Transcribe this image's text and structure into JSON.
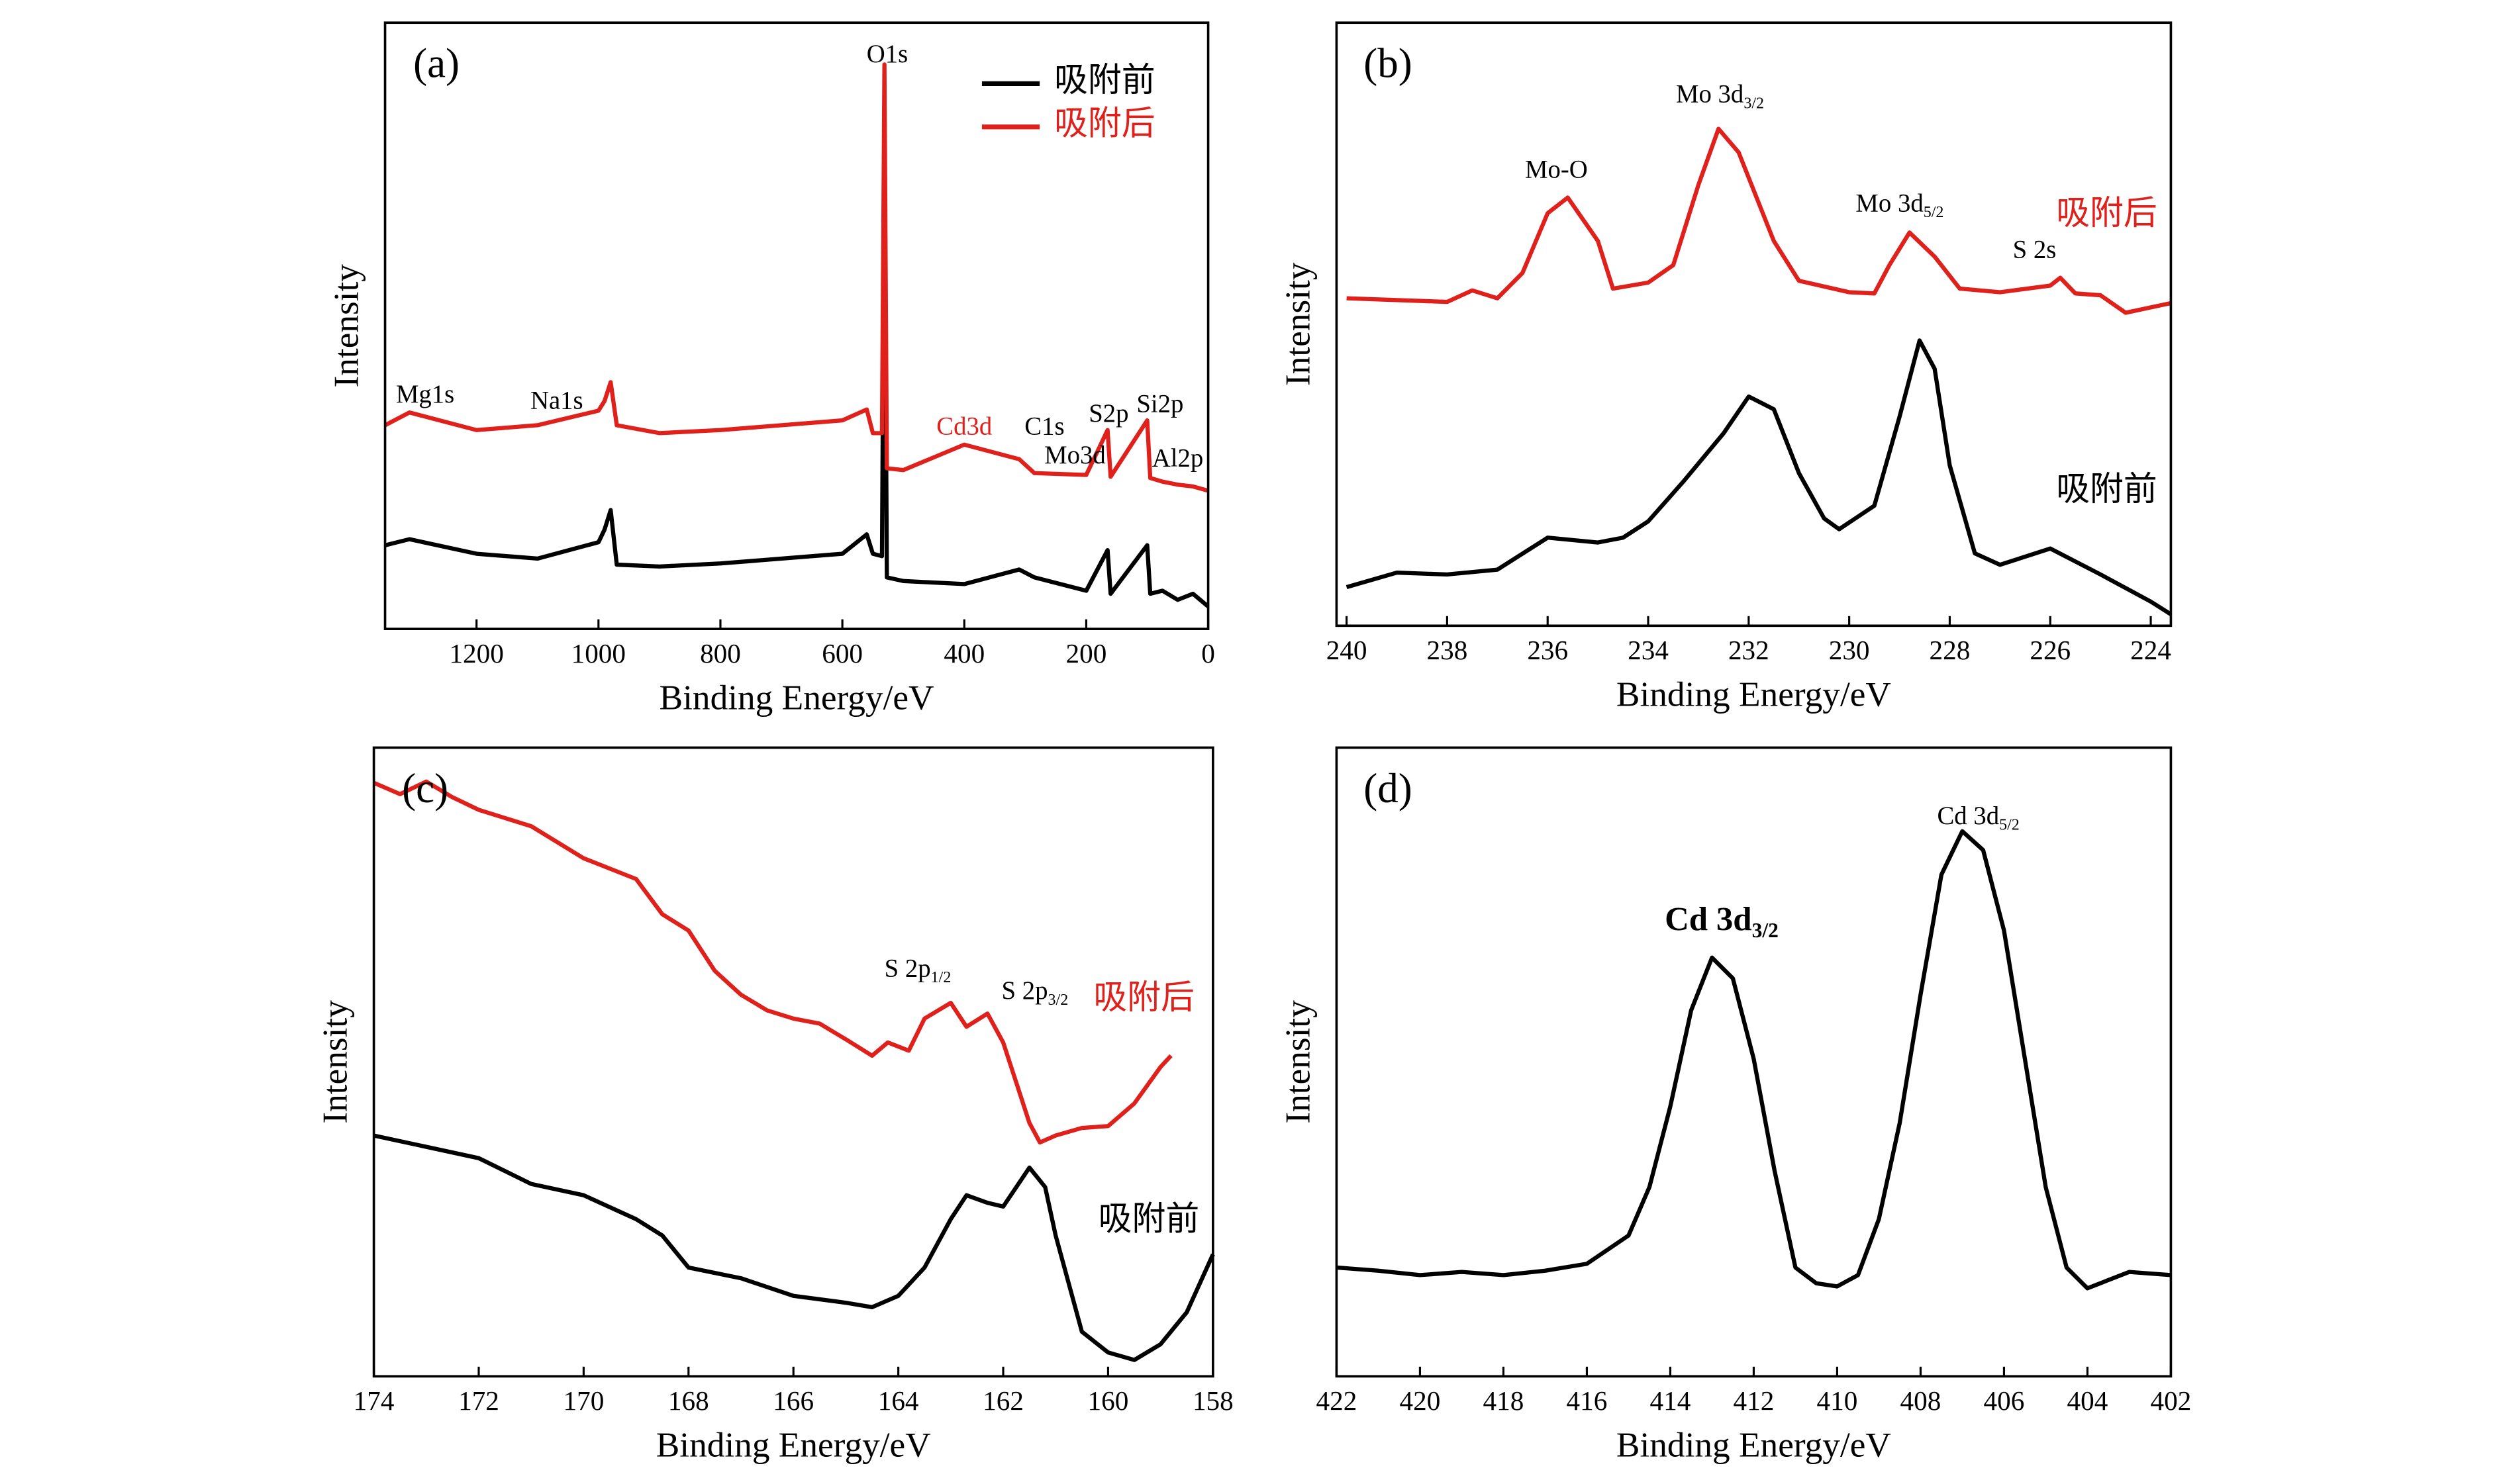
{
  "chart_data": [
    {
      "type": "line",
      "label": "(a)",
      "xlabel": "Binding Energy/eV",
      "ylabel": "Intensity",
      "xlim": [
        1350,
        0
      ],
      "ylim": [
        0,
        100
      ],
      "xticks": [
        1200,
        1000,
        800,
        600,
        400,
        200,
        0
      ],
      "legend": "upper right",
      "series": [
        {
          "name": "吸附前",
          "color": "#000000",
          "x": [
            1350,
            1310,
            1200,
            1100,
            1000,
            990,
            980,
            970,
            900,
            800,
            600,
            560,
            550,
            535,
            531,
            527,
            500,
            400,
            310,
            285,
            200,
            165,
            160,
            100,
            95,
            75,
            50,
            25,
            0
          ],
          "values": [
            13.8,
            14.8,
            12.4,
            11.6,
            14.3,
            16.4,
            19.6,
            10.6,
            10.3,
            10.8,
            12.4,
            15.6,
            12.4,
            12,
            79.9,
            8.5,
            7.9,
            7.4,
            9.8,
            8.5,
            6.3,
            13,
            5.8,
            13.8,
            5.8,
            6.3,
            4.8,
            5.8,
            3.7
          ]
        },
        {
          "name": "吸附后",
          "color": "#e0201b",
          "x": [
            1350,
            1310,
            1200,
            1100,
            1000,
            990,
            980,
            970,
            900,
            800,
            600,
            560,
            550,
            535,
            531,
            527,
            500,
            400,
            310,
            285,
            200,
            165,
            160,
            100,
            95,
            75,
            50,
            25,
            0
          ],
          "values": [
            33.6,
            35.7,
            32.8,
            33.6,
            36,
            37.6,
            40.7,
            33.6,
            32.3,
            32.8,
            34.4,
            36.2,
            32.3,
            32.3,
            93.1,
            26.5,
            26.2,
            30.4,
            28,
            25.7,
            25.4,
            32.8,
            25.1,
            34.4,
            24.9,
            24.3,
            23.8,
            23.5,
            22.8
          ]
        }
      ],
      "annotations": [
        {
          "text": "O1s"
        },
        {
          "text": "Mg1s"
        },
        {
          "text": "Na1s"
        },
        {
          "text": "Cd3d",
          "color": "#e0201b"
        },
        {
          "text": "C1s"
        },
        {
          "text": "Mo3d"
        },
        {
          "text": "S2p"
        },
        {
          "text": "Si2p"
        },
        {
          "text": "Al2p"
        }
      ]
    },
    {
      "type": "line",
      "label": "(b)",
      "xlabel": "Binding Energy/eV",
      "ylabel": "Intensity",
      "xlim": [
        240.2,
        223.6
      ],
      "ylim": [
        0,
        100
      ],
      "xticks": [
        240,
        238,
        236,
        234,
        232,
        230,
        228,
        226,
        224
      ],
      "series": [
        {
          "name": "吸附前",
          "color": "#000000",
          "x": [
            240,
            239,
            238,
            237,
            236,
            235,
            234.5,
            234,
            233.3,
            232.5,
            232,
            231.5,
            231,
            230.5,
            230.2,
            229.5,
            229,
            228.6,
            228.3,
            228,
            227.5,
            227,
            226,
            225,
            224,
            223.6
          ],
          "values": [
            6.4,
            8.8,
            8.5,
            9.3,
            14.6,
            13.8,
            14.6,
            17.3,
            23.9,
            31.9,
            38,
            35.9,
            25.3,
            17.8,
            16,
            19.9,
            34.6,
            47.3,
            42.6,
            26.6,
            12,
            10.1,
            12.8,
            8.5,
            4,
            1.9
          ]
        },
        {
          "name": "吸附后",
          "color": "#e0201b",
          "x": [
            240,
            238,
            237.5,
            237,
            236.5,
            236,
            235.6,
            235,
            234.7,
            234,
            233.5,
            233,
            232.6,
            232.2,
            231.5,
            231,
            230,
            229.5,
            229.2,
            228.8,
            228.3,
            227.8,
            227,
            226,
            225.8,
            225.5,
            225,
            224.5,
            223.6
          ],
          "values": [
            54.3,
            53.7,
            55.6,
            54.3,
            58.5,
            68.4,
            71,
            63.8,
            55.9,
            56.9,
            59.8,
            73.1,
            82.4,
            78.5,
            63.8,
            57.2,
            55.3,
            55.1,
            59.8,
            65.2,
            61.2,
            55.9,
            55.3,
            56.4,
            57.7,
            55.1,
            54.8,
            51.9,
            53.5
          ]
        }
      ],
      "annotations": [
        {
          "text": "Mo 3d",
          "sub": "3/2"
        },
        {
          "text": "Mo-O"
        },
        {
          "text": "Mo 3d",
          "sub": "5/2"
        },
        {
          "text": "S 2s"
        }
      ]
    },
    {
      "type": "line",
      "label": "(c)",
      "xlabel": "Binding Energy/eV",
      "ylabel": "Intensity",
      "xlim": [
        174,
        158
      ],
      "ylim": [
        0,
        100
      ],
      "xticks": [
        174,
        172,
        170,
        168,
        166,
        164,
        162,
        160,
        158
      ],
      "series": [
        {
          "name": "吸附前",
          "color": "#000000",
          "x": [
            174,
            173,
            172,
            171,
            170,
            169,
            168.5,
            168,
            167,
            166,
            165,
            164.5,
            164,
            163.5,
            163,
            162.7,
            162.3,
            162,
            161.5,
            161.2,
            161,
            160.5,
            160,
            159.5,
            159,
            158.5,
            158
          ],
          "values": [
            38.3,
            36.5,
            34.7,
            30.6,
            28.8,
            25,
            22.4,
            17.3,
            15.6,
            12.8,
            11.7,
            11,
            12.8,
            17.3,
            25,
            28.8,
            27.6,
            27,
            33.2,
            30.1,
            22.4,
            7.1,
            3.8,
            2.6,
            5.1,
            10.2,
            19.4
          ]
        },
        {
          "name": "吸附后",
          "color": "#e0201b",
          "x": [
            174,
            173.5,
            173,
            172.5,
            172,
            171,
            170,
            169,
            168.5,
            168,
            167.5,
            167,
            166.5,
            166,
            165.5,
            165,
            164.5,
            164.2,
            163.8,
            163.5,
            163,
            162.7,
            162.3,
            162,
            161.5,
            161.3,
            161,
            160.5,
            160,
            159.5,
            159,
            158.8
          ],
          "values": [
            94.4,
            92.6,
            94.6,
            92.1,
            90.1,
            87.5,
            82.4,
            79.1,
            73.5,
            70.9,
            64.5,
            60.7,
            58.2,
            56.9,
            56.1,
            53.6,
            51,
            53.1,
            51.8,
            56.9,
            59.4,
            55.6,
            57.7,
            53.1,
            40.3,
            37.2,
            38.3,
            39.5,
            39.8,
            43.4,
            49.2,
            51
          ]
        }
      ],
      "annotations": [
        {
          "text": "S 2p",
          "sub": "1/2"
        },
        {
          "text": "S 2p",
          "sub": "3/2"
        }
      ]
    },
    {
      "type": "line",
      "label": "(d)",
      "xlabel": "Binding Energy/eV",
      "ylabel": "Intensity",
      "xlim": [
        422,
        402
      ],
      "ylim": [
        0,
        100
      ],
      "xticks": [
        422,
        420,
        418,
        416,
        414,
        412,
        410,
        408,
        406,
        404,
        402
      ],
      "series": [
        {
          "color": "#000000",
          "x": [
            422,
            421,
            420,
            419,
            418,
            417,
            416,
            415,
            414.5,
            414,
            413.5,
            413,
            412.5,
            412,
            411.5,
            411,
            410.5,
            410,
            409.5,
            409,
            408.5,
            408,
            407.5,
            407,
            406.5,
            406,
            405.5,
            405,
            404.5,
            404,
            403.5,
            403,
            402
          ],
          "values": [
            17.3,
            16.8,
            16.1,
            16.6,
            16.1,
            16.8,
            17.9,
            22.4,
            30.1,
            42.9,
            58.2,
            66.6,
            63.3,
            50.5,
            32.7,
            17.3,
            14.8,
            14.3,
            16.1,
            25,
            40.3,
            60.7,
            79.8,
            86.7,
            83.7,
            70.9,
            50.5,
            30.1,
            17.3,
            14,
            15.3,
            16.6,
            16.1
          ]
        }
      ],
      "annotations": [
        {
          "text": "Cd 3d",
          "sub": "3/2",
          "bold": true
        },
        {
          "text": "Cd 3d",
          "sub": "5/2"
        }
      ]
    }
  ]
}
